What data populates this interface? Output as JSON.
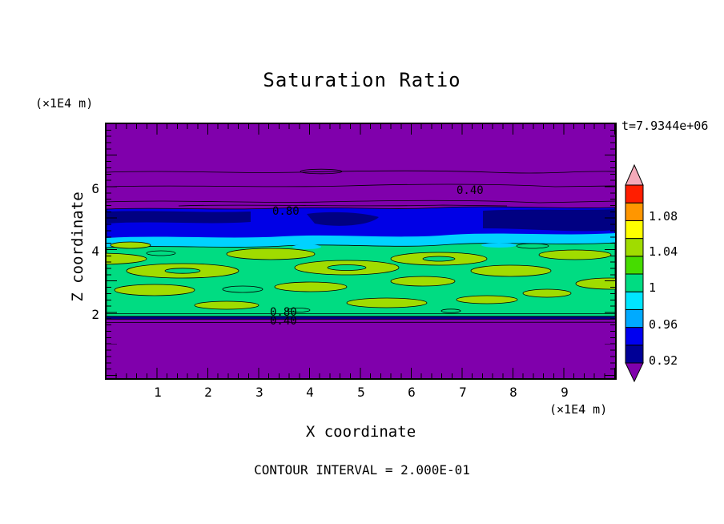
{
  "figure": {
    "title": "Saturation Ratio",
    "time_label": "t=7.9344e+06",
    "contour_interval_label": "CONTOUR INTERVAL = 2.000E-01"
  },
  "axes": {
    "x": {
      "label": "X coordinate",
      "unit": "(×1E4 m)",
      "ticks": [
        "1",
        "2",
        "3",
        "4",
        "5",
        "6",
        "7",
        "8",
        "9"
      ]
    },
    "z": {
      "label": "Z coordinate",
      "unit": "(×1E4 m)",
      "ticks": [
        "6",
        "4",
        "2"
      ]
    }
  },
  "contour_labels": {
    "upper_040": "0.40",
    "upper_080": "0.80",
    "lower_080": "0.80",
    "lower_040": "0.40"
  },
  "colorbar": {
    "labels_top_to_bottom": [
      "1.08",
      "1.04",
      "1",
      "0.96",
      "0.92"
    ],
    "colors_bottom_to_top": [
      "#000096",
      "#0000F0",
      "#00AAFF",
      "#00E6FF",
      "#00DC82",
      "#46DC00",
      "#A0DC00",
      "#FFFF00",
      "#FF9600",
      "#FF1E00"
    ],
    "under_color": "#8000AC",
    "over_color": "#F4AAB9"
  },
  "field_colors": {
    "background": "#8000AC",
    "blue_band": "#0000E6",
    "navy": "#000082",
    "cyan": "#00D2FF",
    "green": "#00DC82",
    "yellow_green": "#A0DC00"
  },
  "chart_data": {
    "type": "heatmap",
    "subtype": "filled-contour-map",
    "title": "Saturation Ratio",
    "xlabel": "X coordinate",
    "ylabel": "Z coordinate",
    "x_unit": "×1E4 m",
    "z_unit": "×1E4 m",
    "xlim": [
      0,
      10
    ],
    "zlim": [
      0,
      8
    ],
    "x_ticks": [
      1,
      2,
      3,
      4,
      5,
      6,
      7,
      8,
      9
    ],
    "z_ticks": [
      2,
      4,
      6
    ],
    "time_label": "t=7.9344e+06",
    "time_value": 7934400,
    "contour_interval": 0.2,
    "colorbar_tick_values": [
      0.92,
      0.96,
      1.0,
      1.04,
      1.08
    ],
    "colorbar_segment_range": [
      0.92,
      1.12
    ],
    "grid": false,
    "legend_position": "right",
    "line_contours": [
      {
        "value": 0.4,
        "approx_z": 6.5
      },
      {
        "value": 0.4,
        "approx_z": 6.1,
        "labeled_at_x": 7.2
      },
      {
        "value": 0.8,
        "approx_z": 5.6
      },
      {
        "value": 0.8,
        "approx_z": 5.45,
        "labeled_at_x": 3.5
      },
      {
        "value": 0.8,
        "approx_z": 2.05,
        "labeled_at_x": 3.5
      },
      {
        "value": 0.4,
        "approx_z": 1.85,
        "labeled_at_x": 3.5
      }
    ],
    "layers_by_z": [
      {
        "z_range": [
          5.4,
          8.0
        ],
        "saturation_ratio": "< 0.4",
        "appearance": "purple (strongly subsaturated)"
      },
      {
        "z_range": [
          4.6,
          5.4
        ],
        "saturation_ratio": "0.92-0.96",
        "appearance": "navy/blue band with darker patches"
      },
      {
        "z_range": [
          4.35,
          4.6
        ],
        "saturation_ratio": "0.96-0.98",
        "appearance": "cyan band"
      },
      {
        "z_range": [
          2.0,
          4.35
        ],
        "saturation_ratio": "0.98-1.06",
        "appearance": "green with irregular yellow-green patches (~1.0-1.04)"
      },
      {
        "z_range": [
          0.0,
          2.0
        ],
        "saturation_ratio": "< 0.4",
        "appearance": "purple (strongly subsaturated)"
      }
    ]
  }
}
